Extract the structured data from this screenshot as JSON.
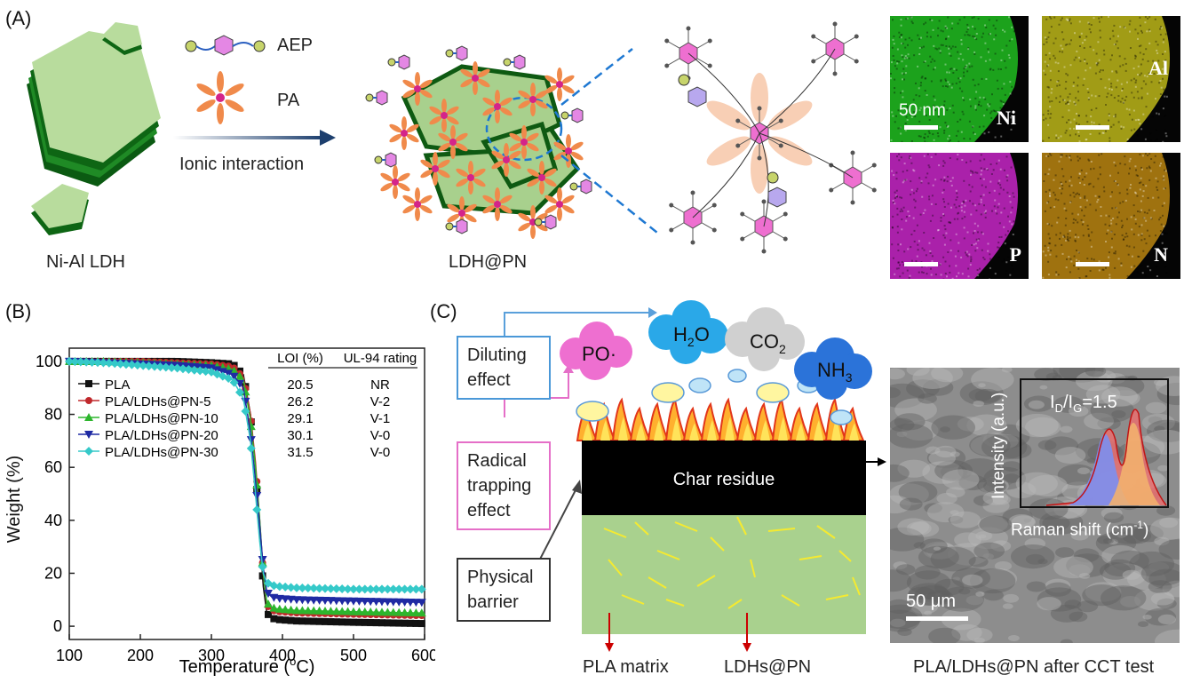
{
  "panels": {
    "a": "(A)",
    "b": "(B)",
    "c": "(C)"
  },
  "panel_a": {
    "ldh_label": "Ni-Al LDH",
    "legend_aep": "AEP",
    "legend_pa": "PA",
    "arrow_label": "Ionic interaction",
    "ldhpn_label": "LDH@PN",
    "eds": [
      {
        "element": "Ni",
        "scale": "50 nm",
        "color": "#22c922"
      },
      {
        "element": "Al",
        "color": "#c8c21a"
      },
      {
        "element": "P",
        "color": "#d328d3"
      },
      {
        "element": "N",
        "color": "#c58d12"
      }
    ]
  },
  "chart_data": {
    "type": "line",
    "xlabel": "Temperature (°C)",
    "xlabel_main": "Temperature (",
    "xlabel_sup": "o",
    "xlabel_tail": "C)",
    "ylabel": "Weight (%)",
    "xlim": [
      100,
      600
    ],
    "ylim": [
      -5,
      105
    ],
    "xticks": [
      100,
      200,
      300,
      400,
      500,
      600
    ],
    "yticks": [
      0,
      20,
      40,
      60,
      80,
      100
    ],
    "legend_position": "left",
    "series": [
      {
        "name": "PLA",
        "color": "#111111",
        "marker": "square",
        "x": [
          100,
          150,
          200,
          250,
          300,
          330,
          345,
          355,
          362,
          368,
          373,
          378,
          385,
          395,
          420,
          500,
          600
        ],
        "y": [
          100,
          100,
          100,
          100,
          99.5,
          99,
          95,
          80,
          60,
          35,
          15,
          5,
          3,
          2.5,
          2,
          1.5,
          1
        ]
      },
      {
        "name": "PLA/LDHs@PN-5",
        "color": "#c0282c",
        "marker": "circle",
        "x": [
          100,
          150,
          200,
          250,
          300,
          330,
          345,
          355,
          362,
          368,
          373,
          378,
          385,
          395,
          420,
          500,
          600
        ],
        "y": [
          100,
          100,
          100,
          99.5,
          99,
          98,
          94,
          80,
          62,
          40,
          20,
          8,
          6,
          5.5,
          5,
          4.5,
          4
        ]
      },
      {
        "name": "PLA/LDHs@PN-10",
        "color": "#2db52d",
        "marker": "triangle-up",
        "x": [
          100,
          150,
          200,
          250,
          300,
          330,
          345,
          355,
          362,
          368,
          373,
          378,
          385,
          395,
          420,
          500,
          600
        ],
        "y": [
          100,
          100,
          99.5,
          99,
          98.5,
          97,
          93,
          78,
          60,
          40,
          20,
          9,
          7,
          6.5,
          6,
          5.5,
          5
        ]
      },
      {
        "name": "PLA/LDHs@PN-20",
        "color": "#1f2aa3",
        "marker": "triangle-down",
        "x": [
          100,
          150,
          200,
          250,
          300,
          330,
          345,
          355,
          362,
          368,
          373,
          378,
          385,
          395,
          420,
          500,
          600
        ],
        "y": [
          100,
          99.5,
          99,
          98.5,
          97.5,
          95,
          90,
          73,
          55,
          38,
          22,
          13,
          11,
          10.5,
          10,
          9.5,
          9
        ]
      },
      {
        "name": "PLA/LDHs@PN-30",
        "color": "#35c9c9",
        "marker": "diamond",
        "x": [
          100,
          150,
          200,
          250,
          300,
          330,
          345,
          355,
          362,
          368,
          373,
          378,
          385,
          395,
          420,
          500,
          600
        ],
        "y": [
          100,
          99.5,
          98.5,
          97.5,
          96,
          93,
          86,
          70,
          50,
          32,
          20,
          16.5,
          15.5,
          15,
          14.5,
          14,
          14
        ]
      }
    ],
    "table": {
      "headers": [
        "LOI (%)",
        "UL-94 rating"
      ],
      "rows": [
        [
          "20.5",
          "NR"
        ],
        [
          "26.2",
          "V-2"
        ],
        [
          "29.1",
          "V-1"
        ],
        [
          "30.1",
          "V-0"
        ],
        [
          "31.5",
          "V-0"
        ]
      ]
    }
  },
  "panel_c": {
    "diluting": [
      "Diluting",
      "effect"
    ],
    "radical": [
      "Radical",
      "trapping",
      "effect"
    ],
    "physical": [
      "Physical",
      "barrier"
    ],
    "gases": [
      {
        "main": "PO",
        "tail": "·",
        "color": "#ee6fd0"
      },
      {
        "main": "H",
        "sub": "2",
        "tail": "O",
        "color": "#2aa8e8"
      },
      {
        "main": "CO",
        "sub": "2",
        "color": "#d0d0d0"
      },
      {
        "main": "NH",
        "sub": "3",
        "color": "#2b73d9"
      }
    ],
    "char_residue": "Char residue",
    "pla_matrix": "PLA matrix",
    "ldhs_pn": "LDHs@PN",
    "sem_caption": "PLA/LDHs@PN after CCT test",
    "sem_scale": "50 μm",
    "raman_ratio_i": "I",
    "raman_ratio_d": "D",
    "raman_ratio_g": "G",
    "raman_ratio_val": "=1.5",
    "raman_ylabel": "Intensity (a.u.)",
    "raman_xlabel_main": "Raman shift (cm",
    "raman_xlabel_sup": "-1",
    "raman_xlabel_tail": ")"
  }
}
